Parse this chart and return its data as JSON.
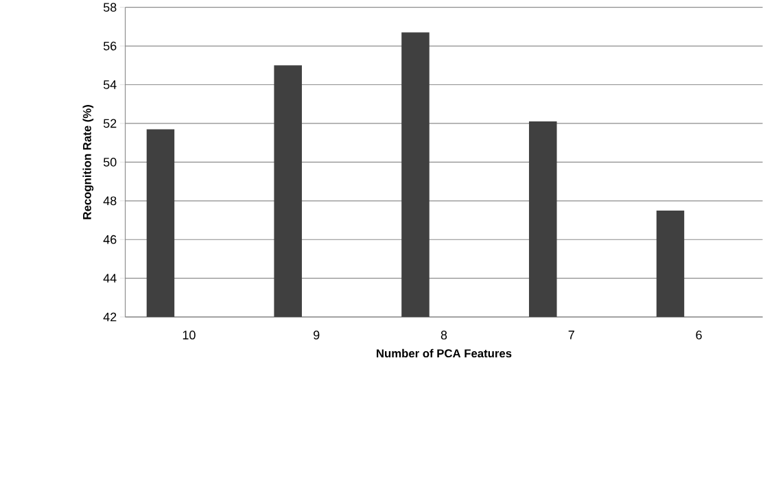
{
  "chart_data": {
    "type": "bar",
    "xlabel": "Number of PCA Features",
    "ylabel": "Recognition Rate (%)",
    "categories": [
      "10",
      "9",
      "8",
      "7",
      "6"
    ],
    "values": [
      51.7,
      55.0,
      56.7,
      52.1,
      47.5
    ],
    "color": "#404040",
    "ylim": [
      42,
      58
    ],
    "yticks": [
      42,
      44,
      46,
      48,
      50,
      52,
      54,
      56,
      58
    ],
    "grid": "y"
  }
}
